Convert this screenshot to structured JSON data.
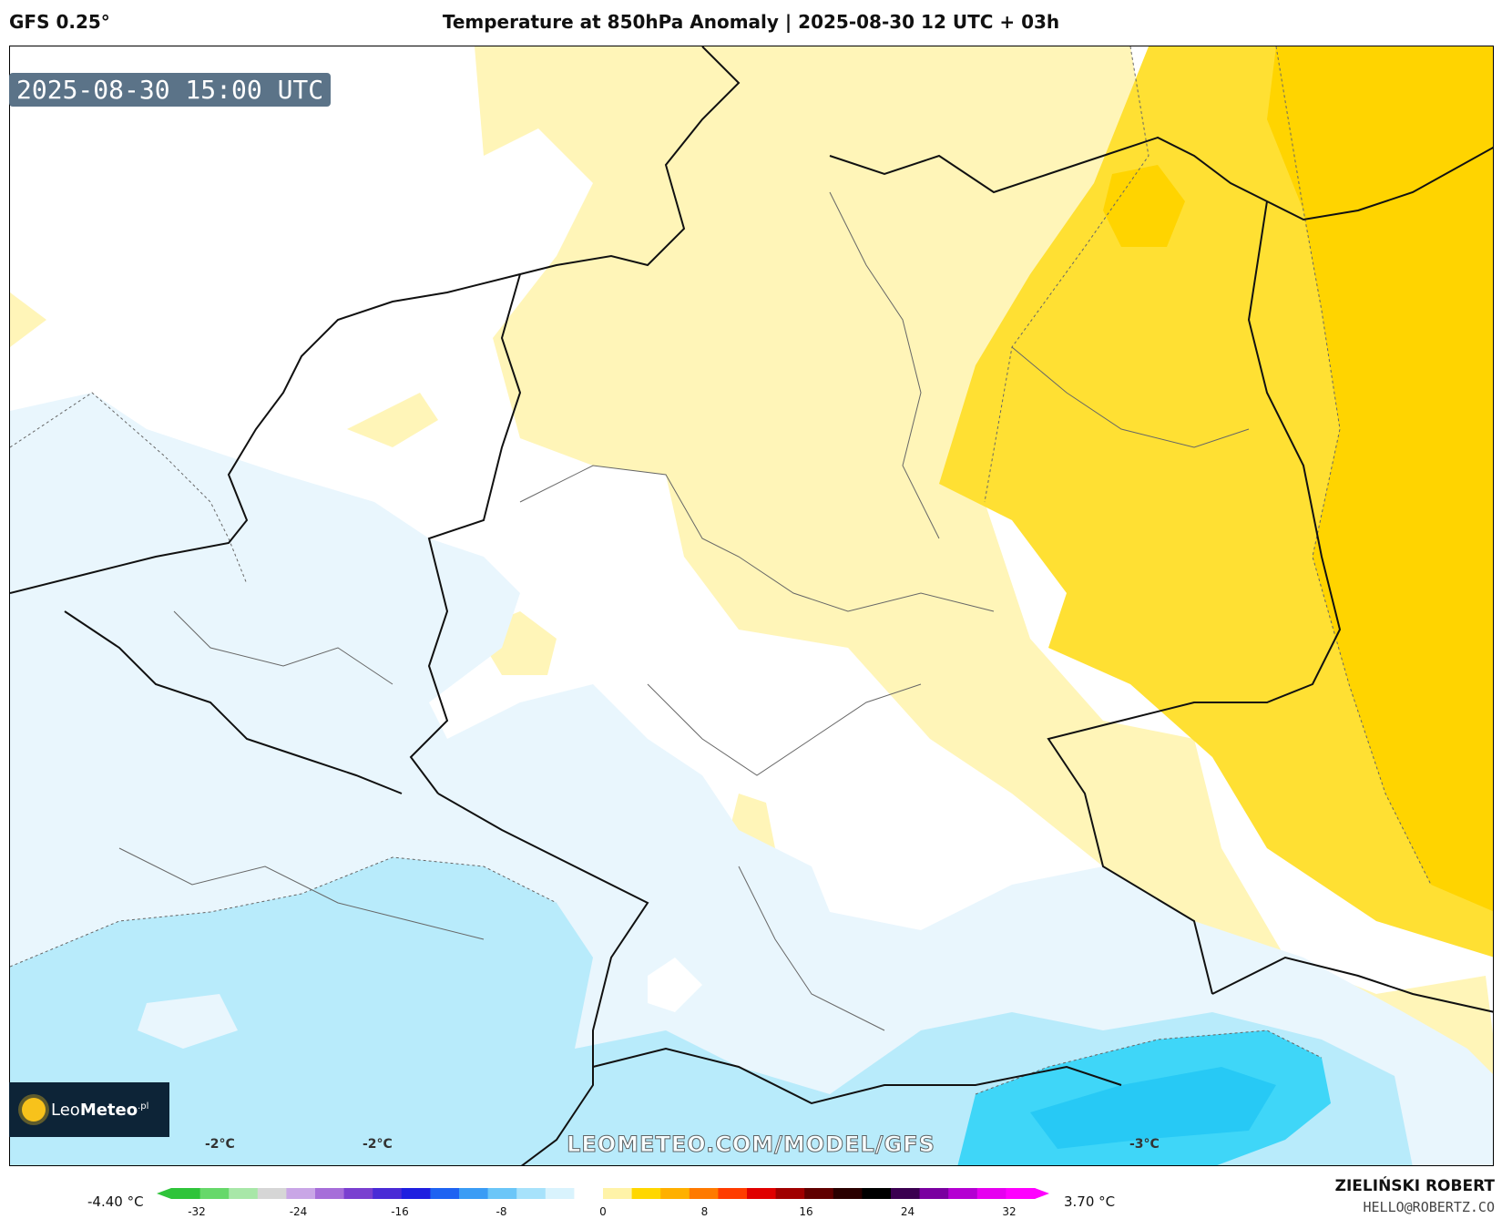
{
  "header": {
    "model": "GFS 0.25°",
    "title": "Temperature at 850hPa Anomaly | 2025-08-30 12 UTC + 03h"
  },
  "valid_time": "2025-08-30 15:00 UTC",
  "logo": {
    "name_regular": "Leo",
    "name_bold": "Meteo",
    "suffix": ".pl"
  },
  "contour_labels": [
    "-2°C",
    "-2°C",
    "-3°C"
  ],
  "watermark": "LEOMETEO.COM/MODEL/GFS",
  "colorbar": {
    "min_label": "-4.40 °C",
    "max_label": "3.70 °C",
    "ticks": [
      "-32",
      "-24",
      "-16",
      "-8",
      "0",
      "8",
      "16",
      "24",
      "32"
    ],
    "colors": [
      "#2fc43a",
      "#66d86a",
      "#a8e7a8",
      "#d6d6d6",
      "#c9a6e6",
      "#a66ed9",
      "#7a3fd0",
      "#4a2bd6",
      "#1f1fe0",
      "#1e63f2",
      "#3a9cf5",
      "#6bc6f8",
      "#a7e2fb",
      "#d9f3fd",
      "#ffffff",
      "#fff3a8",
      "#ffd700",
      "#ffb000",
      "#ff7a00",
      "#ff3c00",
      "#e00000",
      "#a00000",
      "#600000",
      "#2a0000",
      "#000000",
      "#3a0050",
      "#7a00a0",
      "#b400d2",
      "#e600f0",
      "#ff00ff"
    ]
  },
  "footer": {
    "author": "ZIELIŃSKI ROBERT",
    "email": "HELLO@ROBERTZ.CO"
  },
  "colors": {
    "anomaly_pos_1": "#fff5b8",
    "anomaly_pos_2": "#ffe033",
    "anomaly_pos_3": "#ffd400",
    "anomaly_neg_1": "#e9f6fd",
    "anomaly_neg_2": "#b8ebfb",
    "anomaly_neg_3": "#3fd6f8",
    "badge": "#5b7388",
    "logo_bg": "#0d2437"
  }
}
